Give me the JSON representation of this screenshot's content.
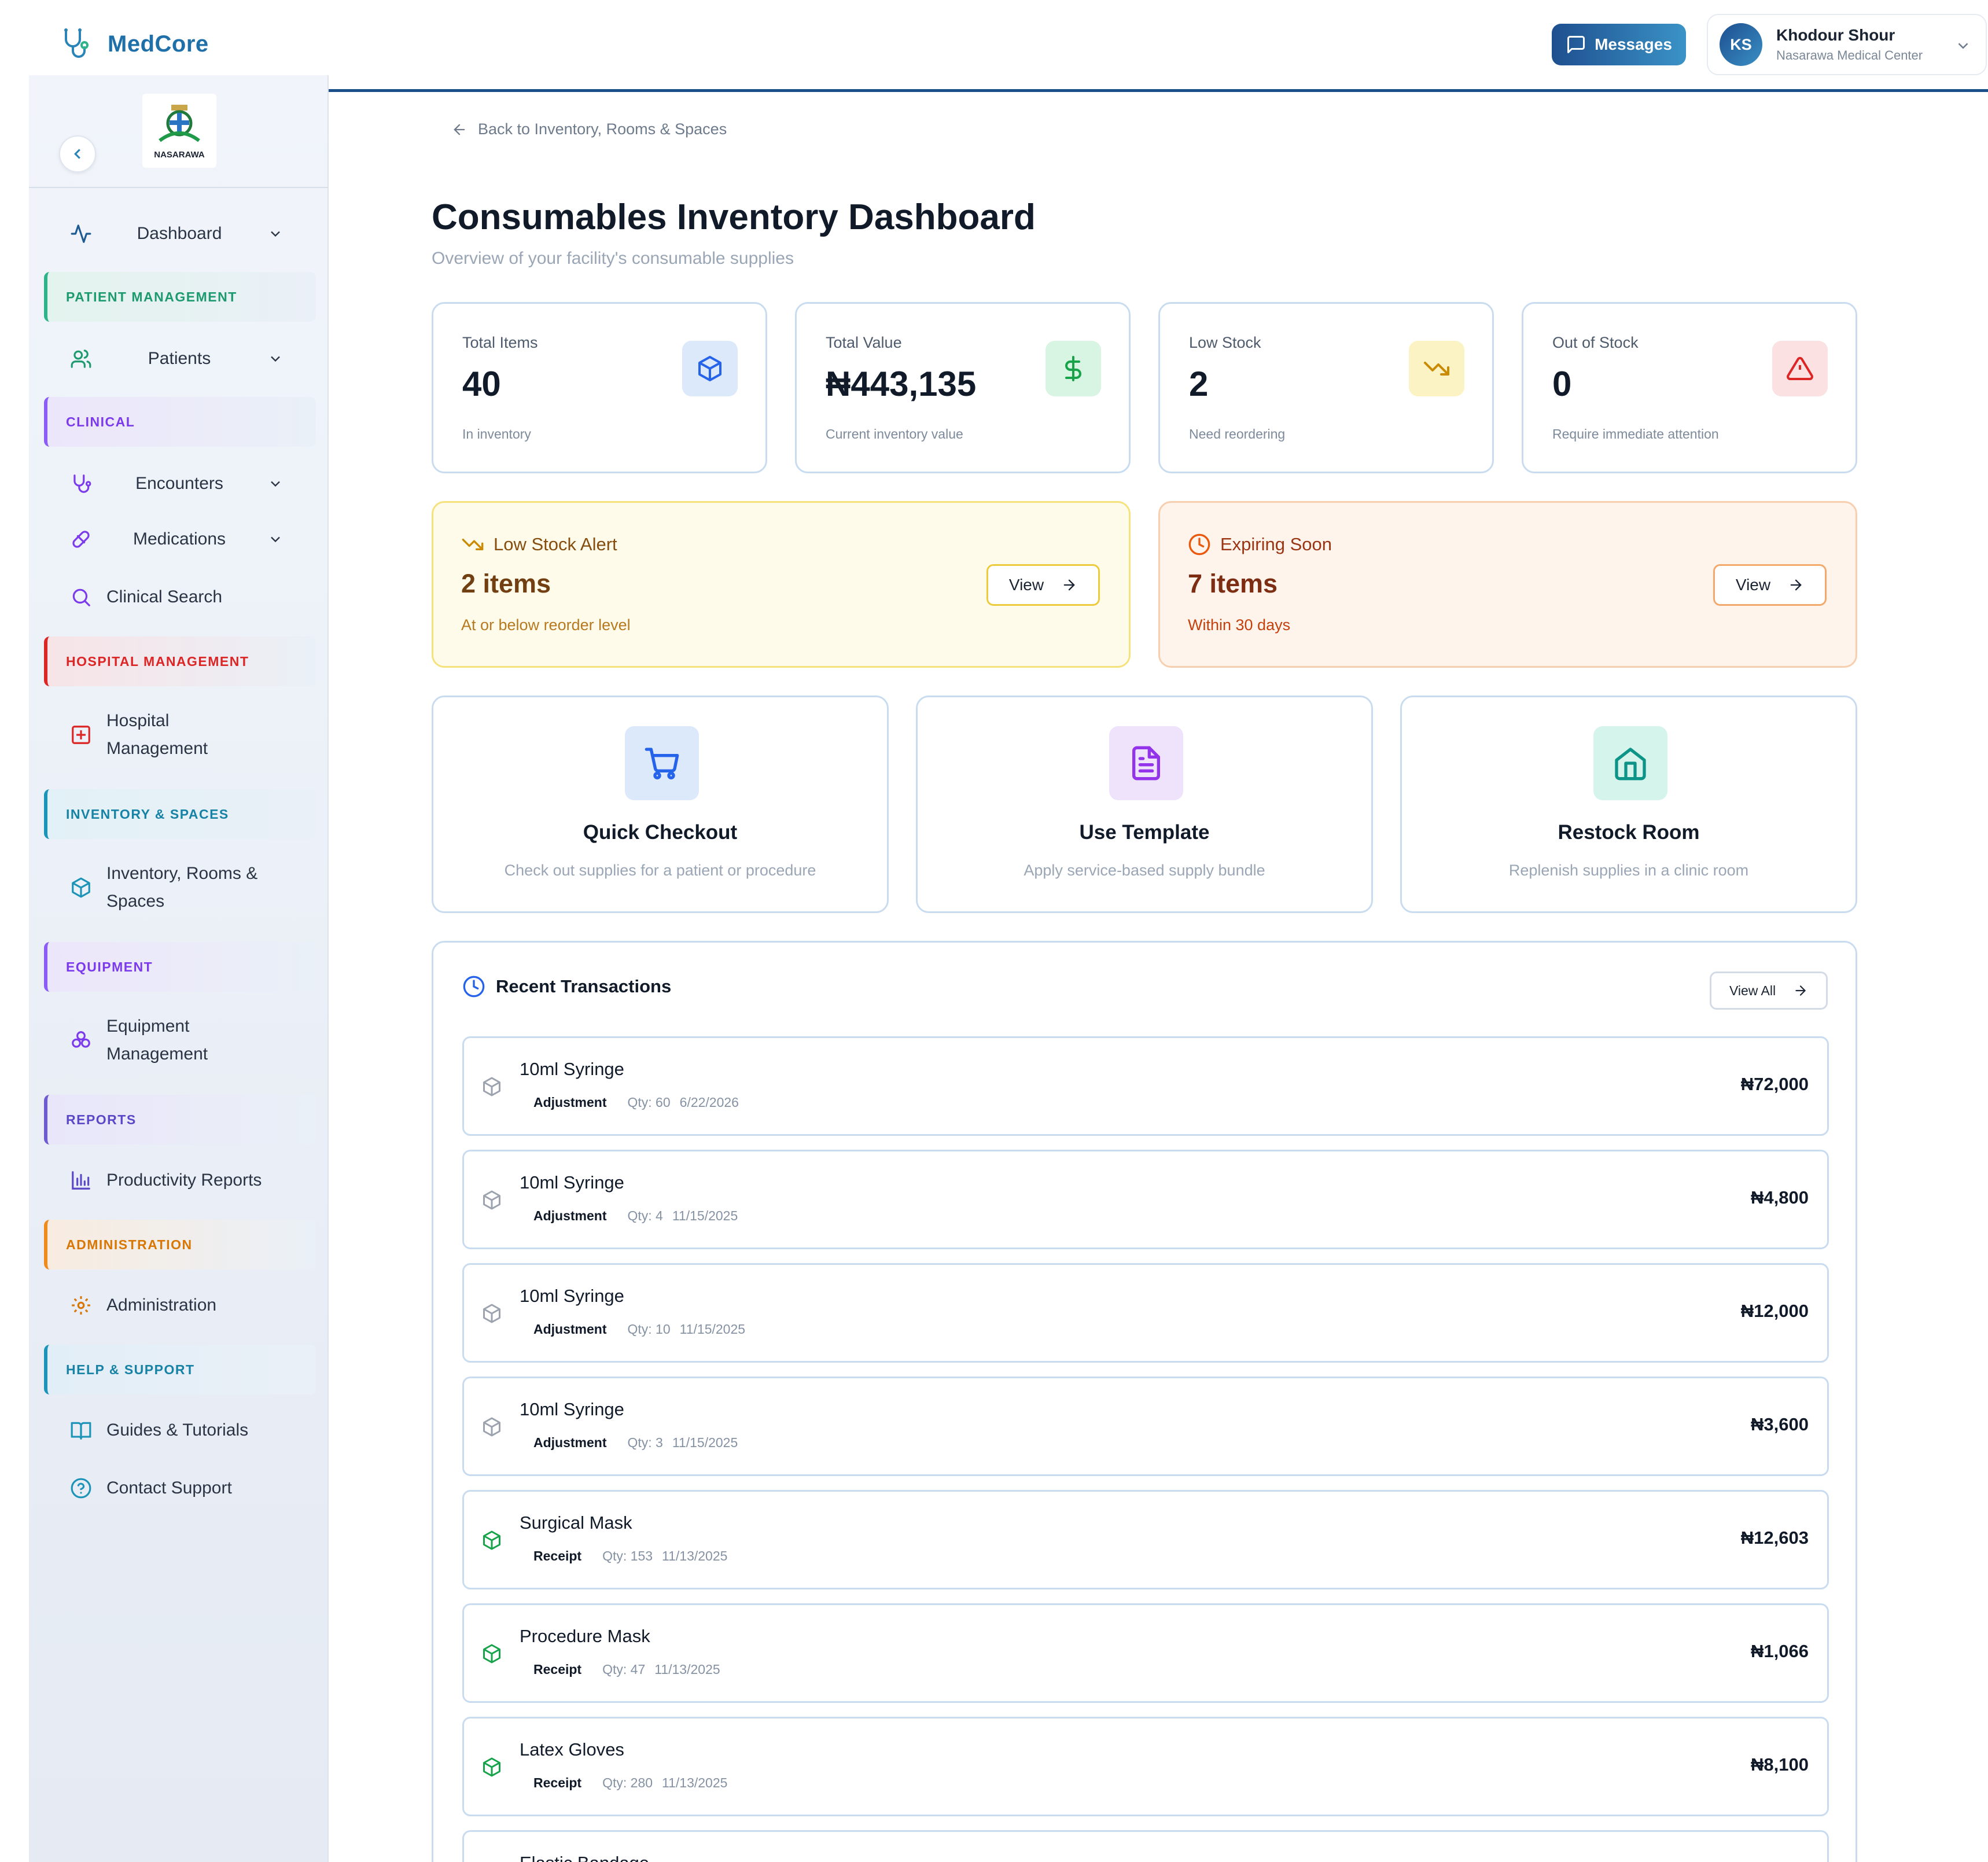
{
  "app": {
    "name": "MedCore"
  },
  "header": {
    "messages_label": "Messages",
    "user": {
      "initials": "KS",
      "name": "Khodour Shour",
      "org": "Nasarawa Medical Center"
    }
  },
  "sidebar": {
    "logo_text": "NASARAWA",
    "items": {
      "dashboard": "Dashboard",
      "patient_management": "PATIENT MANAGEMENT",
      "patients": "Patients",
      "clinical": "CLINICAL",
      "encounters": "Encounters",
      "medications": "Medications",
      "clinical_search": "Clinical Search",
      "hospital_management_section": "HOSPITAL MANAGEMENT",
      "hospital_management_1": "Hospital",
      "hospital_management_2": "Management",
      "inventory_section": "INVENTORY & SPACES",
      "inventory_1": "Inventory, Rooms &",
      "inventory_2": "Spaces",
      "equipment_section": "EQUIPMENT",
      "equipment_1": "Equipment",
      "equipment_2": "Management",
      "reports_section": "REPORTS",
      "productivity_reports": "Productivity Reports",
      "administration_section": "ADMINISTRATION",
      "administration": "Administration",
      "help_section": "HELP & SUPPORT",
      "guides": "Guides & Tutorials",
      "contact": "Contact Support"
    }
  },
  "main": {
    "back_label": "Back to Inventory, Rooms & Spaces",
    "title": "Consumables Inventory Dashboard",
    "subtitle": "Overview of your facility's consumable supplies",
    "stats": [
      {
        "label": "Total Items",
        "value": "40",
        "sub": "In inventory",
        "icon": "box-icon"
      },
      {
        "label": "Total Value",
        "value": "₦443,135",
        "sub": "Current inventory value",
        "icon": "dollar-icon"
      },
      {
        "label": "Low Stock",
        "value": "2",
        "sub": "Need reordering",
        "icon": "trending-down-icon"
      },
      {
        "label": "Out of Stock",
        "value": "0",
        "sub": "Require immediate attention",
        "icon": "alert-triangle-icon"
      }
    ],
    "alerts": [
      {
        "title": "Low Stock Alert",
        "count": "2 items",
        "sub": "At or below reorder level",
        "button": "View"
      },
      {
        "title": "Expiring Soon",
        "count": "7 items",
        "sub": "Within 30 days",
        "button": "View"
      }
    ],
    "actions": [
      {
        "title": "Quick Checkout",
        "desc": "Check out supplies for a patient or procedure"
      },
      {
        "title": "Use Template",
        "desc": "Apply service-based supply bundle"
      },
      {
        "title": "Restock Room",
        "desc": "Replenish supplies in a clinic room"
      }
    ],
    "transactions": {
      "title": "Recent Transactions",
      "view_all": "View All",
      "rows": [
        {
          "name": "10ml Syringe",
          "type": "Adjustment",
          "qty": "Qty: 60",
          "date": "6/22/2026",
          "amount": "₦72,000"
        },
        {
          "name": "10ml Syringe",
          "type": "Adjustment",
          "qty": "Qty: 4",
          "date": "11/15/2025",
          "amount": "₦4,800"
        },
        {
          "name": "10ml Syringe",
          "type": "Adjustment",
          "qty": "Qty: 10",
          "date": "11/15/2025",
          "amount": "₦12,000"
        },
        {
          "name": "10ml Syringe",
          "type": "Adjustment",
          "qty": "Qty: 3",
          "date": "11/15/2025",
          "amount": "₦3,600"
        },
        {
          "name": "Surgical Mask",
          "type": "Receipt",
          "qty": "Qty: 153",
          "date": "11/13/2025",
          "amount": "₦12,603"
        },
        {
          "name": "Procedure Mask",
          "type": "Receipt",
          "qty": "Qty: 47",
          "date": "11/13/2025",
          "amount": "₦1,066"
        },
        {
          "name": "Latex Gloves",
          "type": "Receipt",
          "qty": "Qty: 280",
          "date": "11/13/2025",
          "amount": "₦8,100"
        },
        {
          "name": "Elastic Bandage",
          "type": "",
          "qty": "",
          "date": "",
          "amount": ""
        }
      ]
    }
  }
}
